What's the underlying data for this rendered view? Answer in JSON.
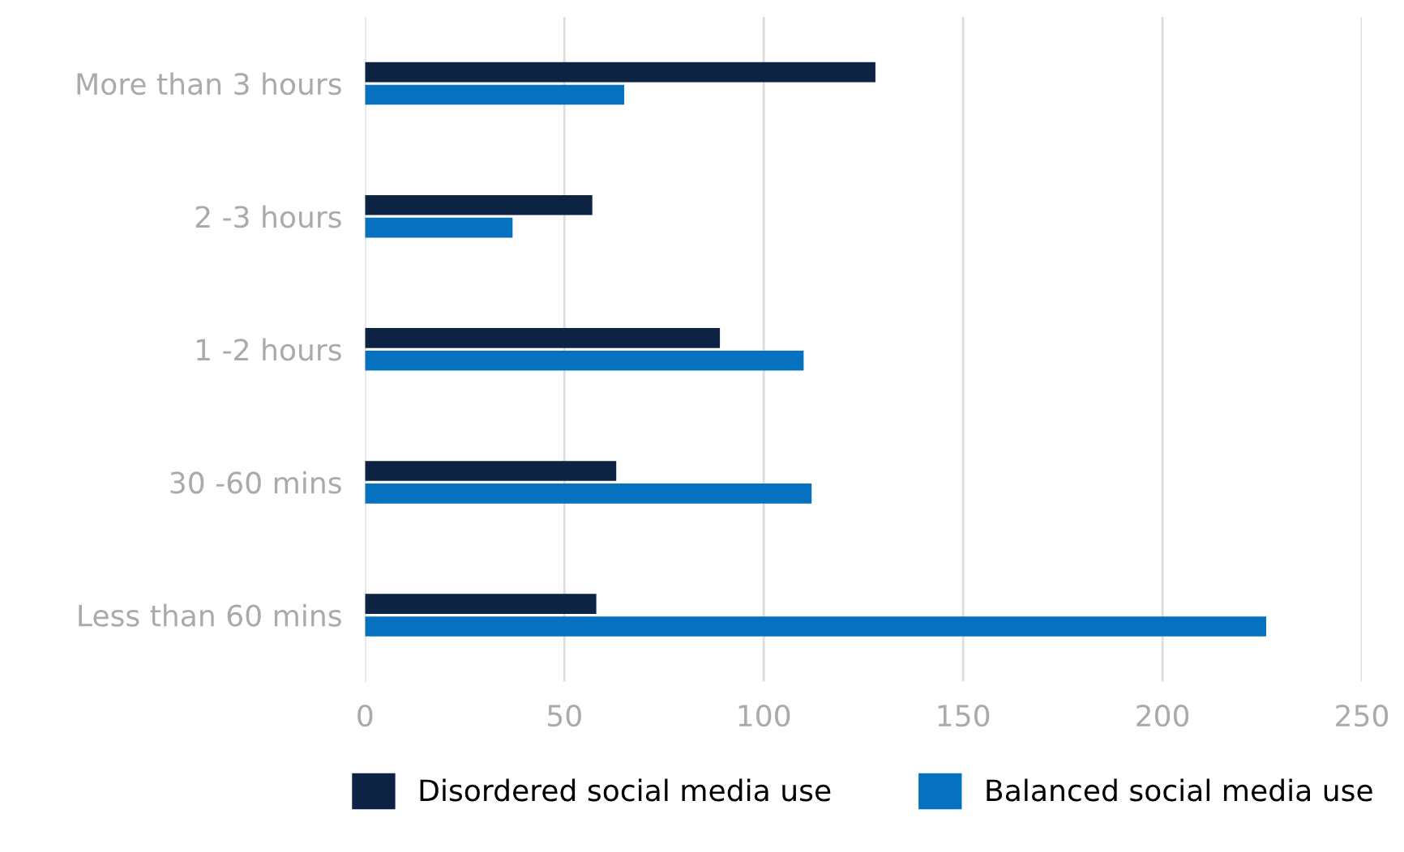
{
  "chart_data": {
    "type": "bar",
    "orientation": "horizontal",
    "categories": [
      "More than 3 hours",
      "2 -3 hours",
      "1 -2 hours",
      "30 -60 mins",
      "Less than 60 mins"
    ],
    "series": [
      {
        "name": "Disordered social media use",
        "color": "#0c2344",
        "values": [
          128,
          57,
          89,
          63,
          58
        ]
      },
      {
        "name": "Balanced social media use",
        "color": "#0571bf",
        "values": [
          65,
          37,
          110,
          112,
          226
        ]
      }
    ],
    "xlim": [
      0,
      250
    ],
    "xticks": [
      0,
      50,
      100,
      150,
      200,
      250
    ],
    "grid": "x",
    "legend": "bottom"
  }
}
